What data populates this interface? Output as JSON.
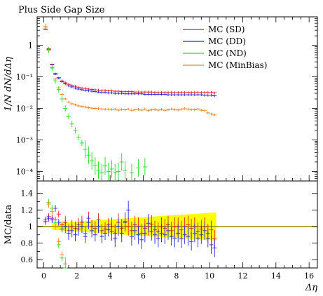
{
  "title": "Plus Side Gap Size",
  "colors": {
    "sd": "#e31a1c",
    "dd": "#2222ee",
    "nd": "#22dd22",
    "minbias": "#f28020",
    "band": "#ffff00",
    "ref": "#9a8a00"
  },
  "chart_data": [
    {
      "type": "scatter",
      "title": "Plus Side Gap Size",
      "xlabel": "",
      "ylabel": "1/N dN/dΔη",
      "yscale": "log",
      "xlim": [
        -0.4,
        16.5
      ],
      "ylim": [
        5e-05,
        8
      ],
      "y_tick_labels": [
        "10⁻⁴",
        "10⁻³",
        "10⁻²",
        "10⁻¹",
        "1"
      ],
      "legend_position": "top-right",
      "series": [
        {
          "name": "MC (SD)",
          "x": [
            0.1,
            0.3,
            0.5,
            0.7,
            0.9,
            1.1,
            1.3,
            1.5,
            1.7,
            1.9,
            2.1,
            2.3,
            2.5,
            2.7,
            2.9,
            3.1,
            3.3,
            3.5,
            3.7,
            3.9,
            4.1,
            4.3,
            4.5,
            4.7,
            4.9,
            5.1,
            5.3,
            5.5,
            5.7,
            5.9,
            6.1,
            6.3,
            6.5,
            6.7,
            6.9,
            7.1,
            7.3,
            7.5,
            7.7,
            7.9,
            8.1,
            8.3,
            8.5,
            8.7,
            8.9,
            9.1,
            9.3,
            9.5,
            9.7,
            9.9,
            10.1,
            10.3
          ],
          "y": [
            3.3,
            0.78,
            0.25,
            0.13,
            0.095,
            0.075,
            0.065,
            0.058,
            0.053,
            0.05,
            0.046,
            0.044,
            0.043,
            0.041,
            0.04,
            0.039,
            0.038,
            0.037,
            0.037,
            0.036,
            0.036,
            0.035,
            0.035,
            0.034,
            0.034,
            0.034,
            0.034,
            0.033,
            0.033,
            0.033,
            0.033,
            0.033,
            0.033,
            0.032,
            0.032,
            0.032,
            0.032,
            0.032,
            0.032,
            0.032,
            0.032,
            0.032,
            0.032,
            0.032,
            0.032,
            0.032,
            0.032,
            0.032,
            0.032,
            0.032,
            0.032,
            0.031
          ]
        },
        {
          "name": "MC (DD)",
          "x": [
            0.1,
            0.3,
            0.5,
            0.7,
            0.9,
            1.1,
            1.3,
            1.5,
            1.7,
            1.9,
            2.1,
            2.3,
            2.5,
            2.7,
            2.9,
            3.1,
            3.3,
            3.5,
            3.7,
            3.9,
            4.1,
            4.3,
            4.5,
            4.7,
            4.9,
            5.1,
            5.3,
            5.5,
            5.7,
            5.9,
            6.1,
            6.3,
            6.5,
            6.7,
            6.9,
            7.1,
            7.3,
            7.5,
            7.7,
            7.9,
            8.1,
            8.3,
            8.5,
            8.7,
            8.9,
            9.1,
            9.3,
            9.5,
            9.7,
            9.9,
            10.1,
            10.3
          ],
          "y": [
            3.2,
            0.75,
            0.24,
            0.12,
            0.088,
            0.07,
            0.06,
            0.052,
            0.048,
            0.044,
            0.041,
            0.039,
            0.037,
            0.036,
            0.035,
            0.034,
            0.033,
            0.032,
            0.032,
            0.031,
            0.031,
            0.03,
            0.03,
            0.03,
            0.029,
            0.029,
            0.029,
            0.029,
            0.029,
            0.029,
            0.028,
            0.028,
            0.028,
            0.028,
            0.028,
            0.028,
            0.028,
            0.027,
            0.027,
            0.027,
            0.027,
            0.027,
            0.027,
            0.027,
            0.027,
            0.027,
            0.027,
            0.027,
            0.026,
            0.026,
            0.026,
            0.025
          ]
        },
        {
          "name": "MC (ND)",
          "x": [
            0.1,
            0.3,
            0.5,
            0.7,
            0.9,
            1.1,
            1.3,
            1.5,
            1.7,
            1.9,
            2.1,
            2.3,
            2.5,
            2.7,
            2.9,
            3.1,
            3.3,
            3.5,
            3.7,
            3.9,
            4.1,
            4.3,
            4.5,
            4.7,
            4.9,
            5.3,
            5.7,
            6.1
          ],
          "y": [
            3.8,
            0.7,
            0.19,
            0.075,
            0.04,
            0.02,
            0.01,
            0.0055,
            0.0032,
            0.002,
            0.0012,
            0.0008,
            0.0005,
            0.00033,
            0.00022,
            0.00015,
            0.00011,
            9e-05,
            0.00015,
            0.0001,
            0.00012,
            9e-05,
            0.0001,
            0.0002,
            0.00011,
            9e-05,
            0.00013,
            0.00014
          ]
        },
        {
          "name": "MC (MinBias)",
          "x": [
            0.1,
            0.3,
            0.5,
            0.7,
            0.9,
            1.1,
            1.3,
            1.5,
            1.7,
            1.9,
            2.1,
            2.3,
            2.5,
            2.7,
            2.9,
            3.1,
            3.3,
            3.5,
            3.7,
            3.9,
            4.1,
            4.3,
            4.5,
            4.7,
            4.9,
            5.1,
            5.3,
            5.5,
            5.7,
            5.9,
            6.1,
            6.3,
            6.5,
            6.7,
            6.9,
            7.1,
            7.3,
            7.5,
            7.7,
            7.9,
            8.1,
            8.3,
            8.5,
            8.7,
            8.9,
            9.1,
            9.3,
            9.5,
            9.7,
            9.9,
            10.1,
            10.3
          ],
          "y": [
            3.9,
            0.72,
            0.2,
            0.085,
            0.045,
            0.028,
            0.02,
            0.016,
            0.014,
            0.013,
            0.012,
            0.0115,
            0.011,
            0.0105,
            0.0102,
            0.01,
            0.0098,
            0.0096,
            0.0094,
            0.0093,
            0.0092,
            0.0095,
            0.0088,
            0.0092,
            0.009,
            0.0095,
            0.0087,
            0.009,
            0.0093,
            0.0088,
            0.0095,
            0.0085,
            0.009,
            0.0092,
            0.0088,
            0.0093,
            0.0087,
            0.009,
            0.0096,
            0.0092,
            0.0089,
            0.0094,
            0.0098,
            0.0095,
            0.0092,
            0.009,
            0.0096,
            0.0088,
            0.0085,
            0.0072,
            0.0066,
            0.0062
          ]
        }
      ]
    },
    {
      "type": "scatter",
      "xlabel": "Δη",
      "ylabel": "MC/data",
      "xlim": [
        -0.4,
        16.5
      ],
      "ylim": [
        0.5,
        1.55
      ],
      "x_ticks": [
        0,
        2,
        4,
        6,
        8,
        10,
        12,
        14,
        16
      ],
      "y_ticks": [
        0.6,
        0.8,
        1,
        1.2,
        1.4
      ],
      "reference_line": 1,
      "band": {
        "x": [
          0.5,
          10.4
        ],
        "upper": [
          1.04,
          1.17
        ],
        "lower": [
          0.96,
          0.83
        ]
      },
      "series": [
        {
          "name": "MC (SD)",
          "x": [
            0.1,
            0.3,
            0.5,
            0.7,
            0.9,
            1.1,
            1.3,
            1.5,
            1.7,
            1.9,
            2.1,
            2.3,
            2.5,
            2.7,
            2.9,
            3.1,
            3.3,
            3.5,
            3.7,
            3.9,
            4.1,
            4.3,
            4.5,
            4.7,
            4.9,
            5.1,
            5.3,
            5.5,
            5.7,
            5.9,
            6.1,
            6.3,
            6.5,
            6.7,
            6.9,
            7.1,
            7.3,
            7.5,
            7.7,
            7.9,
            8.1,
            8.3,
            8.5,
            8.7,
            8.9,
            9.1,
            9.3,
            9.5,
            9.7,
            9.9,
            10.1,
            10.3
          ],
          "y": [
            1.08,
            1.12,
            1.1,
            1.08,
            1.15,
            1.02,
            1.05,
            0.95,
            1.0,
            0.98,
            1.02,
            1.05,
            0.92,
            1.1,
            1.0,
            0.98,
            1.08,
            0.95,
            0.97,
            1.02,
            1.0,
            0.92,
            1.05,
            0.98,
            1.06,
            1.0,
            0.95,
            1.02,
            1.0,
            0.92,
            0.98,
            1.0,
            1.03,
            0.96,
            0.94,
            1.0,
            0.98,
            1.02,
            0.95,
            1.0,
            1.0,
            0.96,
            1.0,
            1.02,
            0.98,
            1.0,
            0.94,
            0.97,
            1.0,
            0.92,
            0.96,
            0.85
          ]
        },
        {
          "name": "MC (DD)",
          "x": [
            0.1,
            0.3,
            0.5,
            0.7,
            0.9,
            1.1,
            1.3,
            1.5,
            1.7,
            1.9,
            2.1,
            2.3,
            2.5,
            2.7,
            2.9,
            3.1,
            3.3,
            3.5,
            3.7,
            3.9,
            4.1,
            4.3,
            4.5,
            4.7,
            4.9,
            5.1,
            5.3,
            5.5,
            5.7,
            5.9,
            6.1,
            6.3,
            6.5,
            6.7,
            6.9,
            7.1,
            7.3,
            7.5,
            7.7,
            7.9,
            8.1,
            8.3,
            8.5,
            8.7,
            8.9,
            9.1,
            9.3,
            9.5,
            9.7,
            9.9,
            10.1,
            10.3
          ],
          "y": [
            1.06,
            1.1,
            1.08,
            1.22,
            1.05,
            0.97,
            1.0,
            0.92,
            0.95,
            0.9,
            0.97,
            1.0,
            0.88,
            1.05,
            0.95,
            0.9,
            1.0,
            0.88,
            0.92,
            0.96,
            0.94,
            0.86,
            1.0,
            0.92,
            1.05,
            1.2,
            0.88,
            0.95,
            0.9,
            0.84,
            0.92,
            1.04,
            0.94,
            0.9,
            0.86,
            0.92,
            0.9,
            0.95,
            0.88,
            0.86,
            0.92,
            0.85,
            0.9,
            0.88,
            0.82,
            0.92,
            0.86,
            0.9,
            0.95,
            0.86,
            0.78,
            0.74
          ]
        },
        {
          "name": "MC (ND)",
          "x": [
            0.3,
            0.5,
            0.7,
            0.9,
            1.1,
            1.3
          ],
          "y": [
            1.29,
            1.22,
            1.05,
            0.78,
            0.62,
            0.5
          ]
        },
        {
          "name": "MC (MinBias)",
          "x": [
            0.3,
            0.5,
            0.7,
            0.9,
            1.1,
            1.3
          ],
          "y": [
            1.27,
            1.18,
            1.0,
            0.82,
            0.66,
            0.55
          ]
        }
      ]
    }
  ]
}
